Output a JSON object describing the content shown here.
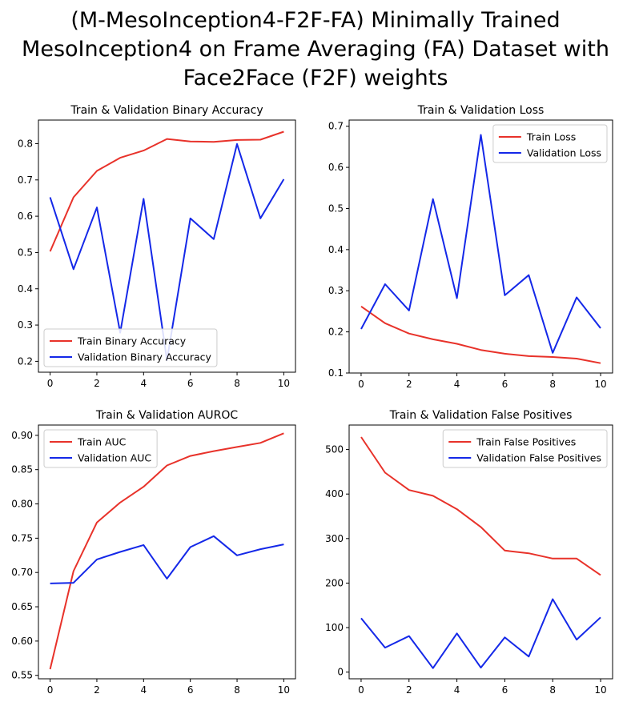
{
  "title_lines": [
    "(M-MesoInception4-F2F-FA) Minimally Trained",
    "MesoInception4 on Frame Averaging (FA) Dataset with",
    "Face2Face (F2F) weights"
  ],
  "colors": {
    "train": "#e8322a",
    "validation": "#1428e8"
  },
  "chart_data": [
    {
      "type": "line",
      "title": "Train & Validation Binary Accuracy",
      "x": [
        0,
        1,
        2,
        3,
        4,
        5,
        6,
        7,
        8,
        9,
        10
      ],
      "series": [
        {
          "name": "Train Binary Accuracy",
          "values": [
            0.503,
            0.652,
            0.725,
            0.761,
            0.781,
            0.813,
            0.806,
            0.805,
            0.81,
            0.811,
            0.833
          ]
        },
        {
          "name": "Validation Binary Accuracy",
          "values": [
            0.652,
            0.454,
            0.624,
            0.279,
            0.648,
            0.203,
            0.594,
            0.537,
            0.799,
            0.594,
            0.702
          ]
        }
      ],
      "xlim": [
        -0.5,
        10.5
      ],
      "ylim": [
        0.17,
        0.865
      ],
      "xticks": [
        0,
        2,
        4,
        6,
        8,
        10
      ],
      "yticks": [
        0.2,
        0.3,
        0.4,
        0.5,
        0.6,
        0.7,
        0.8
      ],
      "ytick_labels": [
        "0.2",
        "0.3",
        "0.4",
        "0.5",
        "0.6",
        "0.7",
        "0.8"
      ],
      "legend": "lower-left",
      "grid": false
    },
    {
      "type": "line",
      "title": "Train & Validation Loss",
      "x": [
        0,
        1,
        2,
        3,
        4,
        5,
        6,
        7,
        8,
        9,
        10
      ],
      "series": [
        {
          "name": "Train Loss",
          "values": [
            0.262,
            0.221,
            0.196,
            0.182,
            0.171,
            0.156,
            0.147,
            0.141,
            0.139,
            0.135,
            0.124
          ]
        },
        {
          "name": "Validation Loss",
          "values": [
            0.207,
            0.316,
            0.252,
            0.523,
            0.282,
            0.679,
            0.289,
            0.338,
            0.149,
            0.284,
            0.209
          ]
        }
      ],
      "xlim": [
        -0.5,
        10.5
      ],
      "ylim": [
        0.1,
        0.715
      ],
      "xticks": [
        0,
        2,
        4,
        6,
        8,
        10
      ],
      "yticks": [
        0.1,
        0.2,
        0.3,
        0.4,
        0.5,
        0.6,
        0.7
      ],
      "ytick_labels": [
        "0.1",
        "0.2",
        "0.3",
        "0.4",
        "0.5",
        "0.6",
        "0.7"
      ],
      "legend": "top-right",
      "grid": false
    },
    {
      "type": "line",
      "title": "Train & Validation AUROC",
      "x": [
        0,
        1,
        2,
        3,
        4,
        5,
        6,
        7,
        8,
        9,
        10
      ],
      "series": [
        {
          "name": "Train AUC",
          "values": [
            0.559,
            0.702,
            0.773,
            0.802,
            0.825,
            0.856,
            0.87,
            0.877,
            0.883,
            0.889,
            0.903
          ]
        },
        {
          "name": "Validation AUC",
          "values": [
            0.684,
            0.685,
            0.719,
            0.73,
            0.74,
            0.691,
            0.737,
            0.753,
            0.725,
            0.734,
            0.741
          ]
        }
      ],
      "xlim": [
        -0.5,
        10.5
      ],
      "ylim": [
        0.545,
        0.915
      ],
      "xticks": [
        0,
        2,
        4,
        6,
        8,
        10
      ],
      "yticks": [
        0.55,
        0.6,
        0.65,
        0.7,
        0.75,
        0.8,
        0.85,
        0.9
      ],
      "ytick_labels": [
        "0.55",
        "0.60",
        "0.65",
        "0.70",
        "0.75",
        "0.80",
        "0.85",
        "0.90"
      ],
      "legend": "top-left",
      "grid": false
    },
    {
      "type": "line",
      "title": "Train & Validation False Positives",
      "x": [
        0,
        1,
        2,
        3,
        4,
        5,
        6,
        7,
        8,
        9,
        10
      ],
      "series": [
        {
          "name": "Train False Positives",
          "values": [
            528,
            448,
            409,
            396,
            366,
            326,
            273,
            267,
            255,
            255,
            218
          ]
        },
        {
          "name": "Validation False Positives",
          "values": [
            121,
            55,
            81,
            9,
            87,
            10,
            78,
            35,
            164,
            73,
            123
          ]
        }
      ],
      "xlim": [
        -0.5,
        10.5
      ],
      "ylim": [
        -15,
        555
      ],
      "xticks": [
        0,
        2,
        4,
        6,
        8,
        10
      ],
      "yticks": [
        0,
        100,
        200,
        300,
        400,
        500
      ],
      "ytick_labels": [
        "0",
        "100",
        "200",
        "300",
        "400",
        "500"
      ],
      "legend": "top-right",
      "grid": false
    }
  ]
}
